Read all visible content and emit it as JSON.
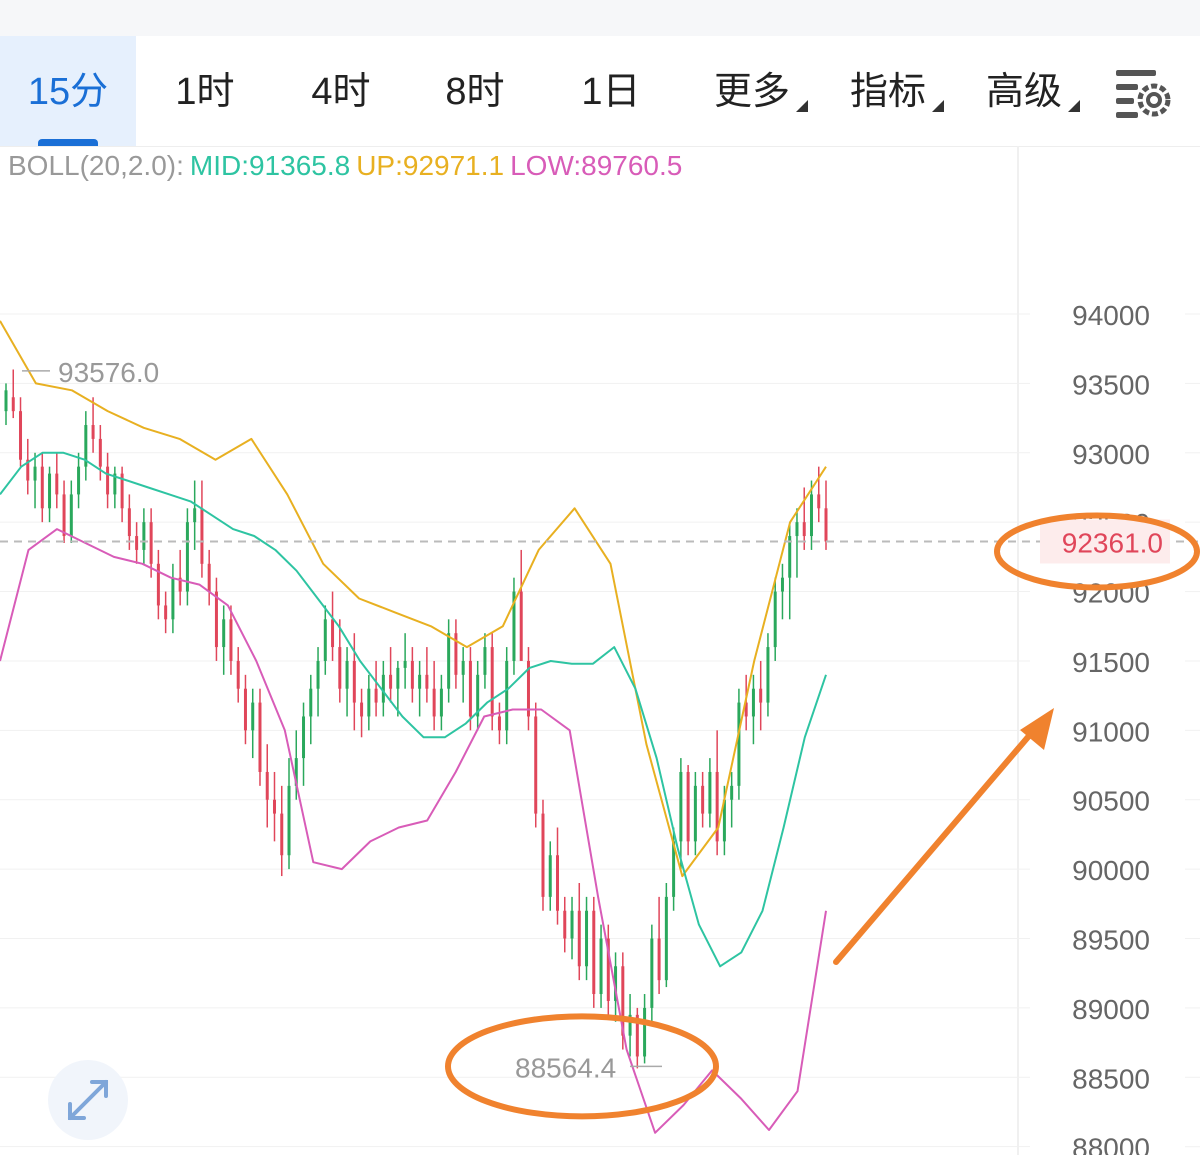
{
  "toolbar": {
    "tabs": [
      {
        "label": "15分",
        "active": true
      },
      {
        "label": "1时"
      },
      {
        "label": "4时"
      },
      {
        "label": "8时"
      },
      {
        "label": "1日"
      },
      {
        "label": "更多",
        "dropdown": true
      },
      {
        "label": "指标",
        "dropdown": true
      },
      {
        "label": "高级",
        "dropdown": true
      }
    ],
    "settings_icon": "chart-settings-gear-icon"
  },
  "legend": {
    "name": "BOLL(20,2.0):",
    "mid": "MID:91365.8",
    "up": "UP:92971.1",
    "low": "LOW:89760.5"
  },
  "colors": {
    "accent": "#1a6fd6",
    "mid": "#2ec4a2",
    "up": "#e8b021",
    "low": "#d85cb8",
    "candle_up": "#2aa85c",
    "candle_down": "#e0465a",
    "annotation": "#f0822e",
    "price_label": "#e0465a"
  },
  "chart_data": {
    "type": "candlestick",
    "indicator": "BOLL(20,2.0)",
    "yaxis": {
      "ticks": [
        "94000",
        "93500",
        "93000",
        "92500",
        "92000",
        "91500",
        "91000",
        "90500",
        "90000",
        "89500",
        "89000",
        "88500",
        "88000"
      ]
    },
    "current_price": "92361.0",
    "high_marker": "93576.0",
    "low_marker": "88564.4",
    "annotations": [
      "circle around current price 92361.0",
      "circle around low 88564.4",
      "upward arrow"
    ],
    "candles_ohlc": [
      [
        93300,
        93500,
        93200,
        93450
      ],
      [
        93400,
        93600,
        93250,
        93300
      ],
      [
        93300,
        93400,
        92900,
        92950
      ],
      [
        92950,
        93100,
        92700,
        92800
      ],
      [
        92800,
        93000,
        92600,
        92900
      ],
      [
        92900,
        93000,
        92500,
        92600
      ],
      [
        92600,
        92900,
        92500,
        92850
      ],
      [
        92850,
        93000,
        92600,
        92700
      ],
      [
        92700,
        92800,
        92350,
        92400
      ],
      [
        92400,
        92800,
        92350,
        92700
      ],
      [
        92700,
        93000,
        92600,
        92900
      ],
      [
        92900,
        93300,
        92800,
        93200
      ],
      [
        93200,
        93400,
        93000,
        93100
      ],
      [
        93100,
        93200,
        92800,
        92900
      ],
      [
        92900,
        93000,
        92600,
        92700
      ],
      [
        92700,
        92900,
        92600,
        92850
      ],
      [
        92850,
        92900,
        92500,
        92600
      ],
      [
        92600,
        92700,
        92300,
        92400
      ],
      [
        92400,
        92500,
        92200,
        92300
      ],
      [
        92300,
        92600,
        92200,
        92500
      ],
      [
        92500,
        92600,
        92100,
        92200
      ],
      [
        92200,
        92300,
        91800,
        91900
      ],
      [
        91900,
        92000,
        91700,
        91800
      ],
      [
        91800,
        92200,
        91700,
        92100
      ],
      [
        92100,
        92300,
        91900,
        92000
      ],
      [
        92000,
        92600,
        91900,
        92500
      ],
      [
        92500,
        92800,
        92300,
        92600
      ],
      [
        92600,
        92800,
        92100,
        92200
      ],
      [
        92200,
        92300,
        91900,
        92000
      ],
      [
        92000,
        92100,
        91500,
        91600
      ],
      [
        91600,
        91900,
        91400,
        91800
      ],
      [
        91800,
        91900,
        91400,
        91500
      ],
      [
        91500,
        91600,
        91200,
        91300
      ],
      [
        91300,
        91400,
        90900,
        91000
      ],
      [
        91000,
        91300,
        90800,
        91200
      ],
      [
        91200,
        91300,
        90600,
        90700
      ],
      [
        90700,
        90900,
        90300,
        90500
      ],
      [
        90500,
        90700,
        90200,
        90400
      ],
      [
        90400,
        90600,
        89950,
        90100
      ],
      [
        90100,
        90800,
        90000,
        90600
      ],
      [
        90600,
        91000,
        90500,
        90800
      ],
      [
        90800,
        91200,
        90600,
        91100
      ],
      [
        91100,
        91400,
        90900,
        91300
      ],
      [
        91300,
        91600,
        91100,
        91500
      ],
      [
        91500,
        91900,
        91400,
        91800
      ],
      [
        91800,
        92000,
        91500,
        91600
      ],
      [
        91600,
        91800,
        91200,
        91300
      ],
      [
        91300,
        91600,
        91100,
        91500
      ],
      [
        91500,
        91700,
        91000,
        91200
      ],
      [
        91200,
        91300,
        90950,
        91100
      ],
      [
        91100,
        91400,
        91000,
        91300
      ],
      [
        91300,
        91500,
        91100,
        91200
      ],
      [
        91200,
        91500,
        91100,
        91400
      ],
      [
        91400,
        91600,
        91200,
        91300
      ],
      [
        91300,
        91500,
        91100,
        91450
      ],
      [
        91450,
        91700,
        91300,
        91500
      ],
      [
        91500,
        91600,
        91200,
        91300
      ],
      [
        91300,
        91500,
        91100,
        91400
      ],
      [
        91400,
        91600,
        91200,
        91300
      ],
      [
        91300,
        91500,
        91000,
        91100
      ],
      [
        91100,
        91400,
        91000,
        91300
      ],
      [
        91300,
        91800,
        91200,
        91700
      ],
      [
        91700,
        91800,
        91300,
        91400
      ],
      [
        91400,
        91600,
        91200,
        91500
      ],
      [
        91500,
        91600,
        91000,
        91100
      ],
      [
        91100,
        91500,
        91000,
        91400
      ],
      [
        91400,
        91700,
        91300,
        91600
      ],
      [
        91600,
        91700,
        91000,
        91100
      ],
      [
        91100,
        91200,
        90900,
        91000
      ],
      [
        91000,
        91600,
        90900,
        91500
      ],
      [
        91500,
        92100,
        91400,
        92000
      ],
      [
        92000,
        92300,
        91800,
        91500
      ],
      [
        91500,
        91600,
        91000,
        91100
      ],
      [
        91100,
        91200,
        90300,
        90400
      ],
      [
        90400,
        90500,
        89700,
        89800
      ],
      [
        89800,
        90200,
        89700,
        90100
      ],
      [
        90100,
        90300,
        89600,
        89700
      ],
      [
        89700,
        89800,
        89400,
        89500
      ],
      [
        89500,
        89800,
        89350,
        89700
      ],
      [
        89700,
        89900,
        89200,
        89300
      ],
      [
        89300,
        89800,
        89200,
        89700
      ],
      [
        89700,
        89800,
        89000,
        89100
      ],
      [
        89100,
        89600,
        89000,
        89500
      ],
      [
        89500,
        89600,
        88950,
        89050
      ],
      [
        89050,
        89400,
        88900,
        89300
      ],
      [
        89300,
        89400,
        88700,
        88800
      ],
      [
        88800,
        89100,
        88650,
        88950
      ],
      [
        88950,
        89000,
        88564,
        88650
      ],
      [
        88650,
        89100,
        88600,
        89000
      ],
      [
        89000,
        89600,
        88900,
        89500
      ],
      [
        89500,
        89800,
        89100,
        89200
      ],
      [
        89200,
        89900,
        89150,
        89800
      ],
      [
        89800,
        90300,
        89700,
        90200
      ],
      [
        90200,
        90800,
        90000,
        90700
      ],
      [
        90700,
        90750,
        90100,
        90200
      ],
      [
        90200,
        90700,
        90100,
        90600
      ],
      [
        90600,
        90700,
        90300,
        90400
      ],
      [
        90400,
        90800,
        90300,
        90700
      ],
      [
        90700,
        91000,
        90100,
        90200
      ],
      [
        90200,
        90600,
        90100,
        90500
      ],
      [
        90500,
        90700,
        90300,
        90600
      ],
      [
        90600,
        91300,
        90500,
        91200
      ],
      [
        91200,
        91400,
        91000,
        91100
      ],
      [
        91100,
        91400,
        90900,
        91300
      ],
      [
        91300,
        91500,
        91000,
        91200
      ],
      [
        91200,
        91700,
        91100,
        91600
      ],
      [
        91600,
        92100,
        91500,
        92000
      ],
      [
        92000,
        92200,
        91800,
        92100
      ],
      [
        92100,
        92500,
        91800,
        92400
      ],
      [
        92400,
        92600,
        92100,
        92500
      ],
      [
        92500,
        92750,
        92300,
        92400
      ],
      [
        92400,
        92800,
        92300,
        92700
      ],
      [
        92700,
        92900,
        92500,
        92600
      ],
      [
        92600,
        92800,
        92300,
        92361
      ]
    ],
    "series": [
      {
        "name": "MID",
        "values": [
          92700,
          92900,
          93000,
          93000,
          92950,
          92850,
          92800,
          92750,
          92700,
          92650,
          92550,
          92450,
          92400,
          92300,
          92150,
          91950,
          91750,
          91500,
          91300,
          91100,
          90950,
          90950,
          91050,
          91200,
          91300,
          91450,
          91500,
          91480,
          91480,
          91600,
          91300,
          90800,
          90150,
          89600,
          89300,
          89400,
          89700,
          90300,
          90950,
          91400
        ]
      },
      {
        "name": "UP",
        "values": [
          93950,
          93500,
          93450,
          93300,
          93180,
          93100,
          92950,
          93100,
          92700,
          92200,
          91950,
          91850,
          91750,
          91600,
          91750,
          92300,
          92600,
          92200,
          90900,
          89950,
          90300,
          91500,
          92500,
          92900
        ]
      },
      {
        "name": "LOW",
        "values": [
          91500,
          92300,
          92450,
          92350,
          92250,
          92200,
          92100,
          92050,
          91900,
          91500,
          91000,
          90050,
          90000,
          90200,
          90300,
          90350,
          90700,
          91100,
          91150,
          91150,
          91000,
          89800,
          88700,
          88100,
          88300,
          88550,
          88350,
          88120,
          88400,
          89700
        ]
      }
    ]
  },
  "expand_icon": "expand-arrows-icon"
}
